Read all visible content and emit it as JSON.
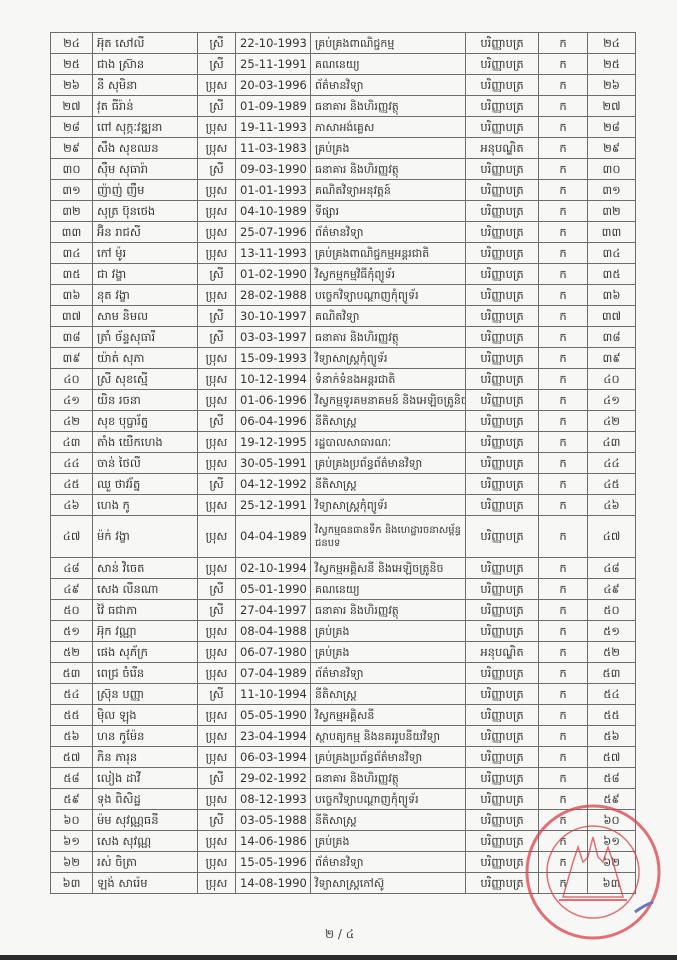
{
  "rows": [
    {
      "no": "២៤",
      "name": "អ៊ុត សៅលី",
      "gender": "ស្រី",
      "dob": "22-10-1993",
      "major": "គ្រប់គ្រងពាណិជ្ជកម្ម",
      "degree": "បរិញ្ញាបត្រ",
      "grade": "ក",
      "no2": "២៤"
    },
    {
      "no": "២៥",
      "name": "ជាង ស្រ៊ាន",
      "gender": "ស្រី",
      "dob": "25-11-1991",
      "major": "គណនេយ្យ",
      "degree": "បរិញ្ញាបត្រ",
      "grade": "ក",
      "no2": "២៥"
    },
    {
      "no": "២៦",
      "name": "នី សុមិនា",
      "gender": "ប្រុស",
      "dob": "20-03-1996",
      "major": "ព័ត៌មានវិទ្យា",
      "degree": "បរិញ្ញាបត្រ",
      "grade": "ក",
      "no2": "២៦"
    },
    {
      "no": "២៧",
      "name": "វុត ធីរ៉ាន់",
      "gender": "ស្រី",
      "dob": "01-09-1989",
      "major": "ធនាគារ និងហិរញ្ញវត្ថុ",
      "degree": "បរិញ្ញាបត្រ",
      "grade": "ក",
      "no2": "២៧"
    },
    {
      "no": "២៨",
      "name": "ពៅ សុក្កៈវឌ្ឍនា",
      "gender": "ប្រុស",
      "dob": "19-11-1993",
      "major": "ភាសាអង់គ្លេស",
      "degree": "បរិញ្ញាបត្រ",
      "grade": "ក",
      "no2": "២៨"
    },
    {
      "no": "២៩",
      "name": "សឹង សុខឈន",
      "gender": "ប្រុស",
      "dob": "11-03-1983",
      "major": "គ្រប់គ្រង",
      "degree": "អនុបណ្ឌិត",
      "grade": "ក",
      "no2": "២៩"
    },
    {
      "no": "៣០",
      "name": "ស៊ឹម សុធារ៉ា",
      "gender": "ស្រី",
      "dob": "09-03-1990",
      "major": "ធនាគារ និងហិរញ្ញវត្ថុ",
      "degree": "បរិញ្ញាបត្រ",
      "grade": "ក",
      "no2": "៣០"
    },
    {
      "no": "៣១",
      "name": "ញ៉ាញ់ ញឹម",
      "gender": "ប្រុស",
      "dob": "01-01-1993",
      "major": "គណិតវិទ្យាអនុវត្តន៍",
      "degree": "បរិញ្ញាបត្រ",
      "grade": "ក",
      "no2": "៣១"
    },
    {
      "no": "៣២",
      "name": "សុត្រ ប៊ុនថេង",
      "gender": "ប្រុស",
      "dob": "04-10-1989",
      "major": "ទីផ្សារ",
      "degree": "បរិញ្ញាបត្រ",
      "grade": "ក",
      "no2": "៣២"
    },
    {
      "no": "៣៣",
      "name": "អ៊ិន រាជសី",
      "gender": "ប្រុស",
      "dob": "25-07-1996",
      "major": "ព័ត៌មានវិទ្យា",
      "degree": "បរិញ្ញាបត្រ",
      "grade": "ក",
      "no2": "៣៣"
    },
    {
      "no": "៣៤",
      "name": "កៅ ម៉ូរ",
      "gender": "ប្រុស",
      "dob": "13-11-1993",
      "major": "គ្រប់គ្រងពាណិជ្ជកម្មអន្តរជាតិ",
      "degree": "បរិញ្ញាបត្រ",
      "grade": "ក",
      "no2": "៣៤"
    },
    {
      "no": "៣៥",
      "name": "ជា វង្ខា",
      "gender": "ស្រី",
      "dob": "01-02-1990",
      "major": "វិស្វកម្មកម្មវិធីកុំព្យូទ័រ",
      "degree": "បរិញ្ញាបត្រ",
      "grade": "ក",
      "no2": "៣៥"
    },
    {
      "no": "៣៦",
      "name": "នុត វង្ខា",
      "gender": "ប្រុស",
      "dob": "28-02-1988",
      "major": "បច្ចេកវិទ្យាបណ្តាញកុំព្យូទ័រ",
      "degree": "បរិញ្ញាបត្រ",
      "grade": "ក",
      "no2": "៣៦"
    },
    {
      "no": "៣៧",
      "name": "សាម និមល",
      "gender": "ស្រី",
      "dob": "30-10-1997",
      "major": "គណិតវិទ្យា",
      "degree": "បរិញ្ញាបត្រ",
      "grade": "ក",
      "no2": "៣៧"
    },
    {
      "no": "៣៨",
      "name": "ត្រាំ ច័ន្ទសុធារី",
      "gender": "ស្រី",
      "dob": "03-03-1997",
      "major": "ធនាគារ និងហិរញ្ញវត្ថុ",
      "degree": "បរិញ្ញាបត្រ",
      "grade": "ក",
      "no2": "៣៨"
    },
    {
      "no": "៣៩",
      "name": "យ៉ាត់ សុភា",
      "gender": "ប្រុស",
      "dob": "15-09-1993",
      "major": "វិទ្យាសាស្ត្រកុំព្យូទ័រ",
      "degree": "បរិញ្ញាបត្រ",
      "grade": "ក",
      "no2": "៣៩"
    },
    {
      "no": "៤០",
      "name": "ស្រី សុខស្មើ",
      "gender": "ប្រុស",
      "dob": "10-12-1994",
      "major": "ទំនាក់ទំនងអន្តរជាតិ",
      "degree": "បរិញ្ញាបត្រ",
      "grade": "ក",
      "no2": "៤០"
    },
    {
      "no": "៤១",
      "name": "យិន រចនា",
      "gender": "ប្រុស",
      "dob": "01-06-1996",
      "major": "វិស្វកម្មទូរគមនាគមន៍ និងអេឡិចត្រូនិច",
      "degree": "បរិញ្ញាបត្រ",
      "grade": "ក",
      "no2": "៤១"
    },
    {
      "no": "៤២",
      "name": "សុខ បុប្ផារ័ត្ន",
      "gender": "ស្រី",
      "dob": "06-04-1996",
      "major": "នីតិសាស្ត្រ",
      "degree": "បរិញ្ញាបត្រ",
      "grade": "ក",
      "no2": "៤២"
    },
    {
      "no": "៤៣",
      "name": "តាំង យើកហេង",
      "gender": "ប្រុស",
      "dob": "19-12-1995",
      "major": "រដ្ឋបាលសាធារណៈ",
      "degree": "បរិញ្ញាបត្រ",
      "grade": "ក",
      "no2": "៤៣"
    },
    {
      "no": "៤៤",
      "name": "ចាន់ ថៃលី",
      "gender": "ប្រុស",
      "dob": "30-05-1991",
      "major": "គ្រប់គ្រងប្រព័ន្ធព័ត៌មានវិទ្យា",
      "degree": "បរិញ្ញាបត្រ",
      "grade": "ក",
      "no2": "៤៤"
    },
    {
      "no": "៤៥",
      "name": "ឈួ ថាវរ័ត្ន",
      "gender": "ស្រី",
      "dob": "04-12-1992",
      "major": "នីតិសាស្ត្រ",
      "degree": "បរិញ្ញាបត្រ",
      "grade": "ក",
      "no2": "៤៥"
    },
    {
      "no": "៤៦",
      "name": "ហេង កូ",
      "gender": "ប្រុស",
      "dob": "25-12-1991",
      "major": "វិទ្យាសាស្ត្រកុំព្យូទ័រ",
      "degree": "បរិញ្ញាបត្រ",
      "grade": "ក",
      "no2": "៤៦"
    },
    {
      "no": "៤៧",
      "name": "ម៉ក់ វង្ខា",
      "gender": "ប្រុស",
      "dob": "04-04-1989",
      "major": "វិស្វកម្មធនធានទឹក និងហេដ្ឋារចនាសម្ព័ន្ធជនបទ",
      "degree": "បរិញ្ញាបត្រ",
      "grade": "ក",
      "no2": "៤៧"
    },
    {
      "no": "៤៨",
      "name": "សាន់ វិចេត",
      "gender": "ប្រុស",
      "dob": "02-10-1994",
      "major": "វិស្វកម្មអគ្គិសនី និងអេឡិចត្រូនិច",
      "degree": "បរិញ្ញាបត្រ",
      "grade": "ក",
      "no2": "៤៨"
    },
    {
      "no": "៤៩",
      "name": "សេង លីនណា",
      "gender": "ស្រី",
      "dob": "05-01-1990",
      "major": "គណនេយ្យ",
      "degree": "បរិញ្ញាបត្រ",
      "grade": "ក",
      "no2": "៤៩"
    },
    {
      "no": "៥០",
      "name": "វ៉ៃ ធជាភា",
      "gender": "ស្រី",
      "dob": "27-04-1997",
      "major": "ធនាគារ និងហិរញ្ញវត្ថុ",
      "degree": "បរិញ្ញាបត្រ",
      "grade": "ក",
      "no2": "៥០"
    },
    {
      "no": "៥១",
      "name": "អ៊ុក វណ្ណា",
      "gender": "ប្រុស",
      "dob": "08-04-1988",
      "major": "គ្រប់គ្រង",
      "degree": "បរិញ្ញាបត្រ",
      "grade": "ក",
      "no2": "៥១"
    },
    {
      "no": "៥២",
      "name": "ផេង សុភ័ក្រ",
      "gender": "ប្រុស",
      "dob": "06-07-1980",
      "major": "គ្រប់គ្រង",
      "degree": "អនុបណ្ឌិត",
      "grade": "ក",
      "no2": "៥២"
    },
    {
      "no": "៥៣",
      "name": "ពេជ្រ ចំរើន",
      "gender": "ប្រុស",
      "dob": "07-04-1989",
      "major": "ព័ត៌មានវិទ្យា",
      "degree": "បរិញ្ញាបត្រ",
      "grade": "ក",
      "no2": "៥៣"
    },
    {
      "no": "៥៤",
      "name": "ស្រ៊ុន បញ្ញា",
      "gender": "ស្រី",
      "dob": "11-10-1994",
      "major": "នីតិសាស្ត្រ",
      "degree": "បរិញ្ញាបត្រ",
      "grade": "ក",
      "no2": "៥៤"
    },
    {
      "no": "៥៥",
      "name": "ម៉ិល ឡុង",
      "gender": "ប្រុស",
      "dob": "05-05-1990",
      "major": "វិស្វកម្មអគ្គិសនី",
      "degree": "បរិញ្ញាបត្រ",
      "grade": "ក",
      "no2": "៥៥"
    },
    {
      "no": "៥៦",
      "name": "ហន កូម៉ែន",
      "gender": "ប្រុស",
      "dob": "23-04-1994",
      "major": "ស្ថាបត្យកម្ម និងនគររូបនីយវិទ្យា",
      "degree": "បរិញ្ញាបត្រ",
      "grade": "ក",
      "no2": "៥៦"
    },
    {
      "no": "៥៧",
      "name": "ភិន ភារុន",
      "gender": "ប្រុស",
      "dob": "06-03-1994",
      "major": "គ្រប់គ្រងប្រព័ន្ធព័ត៌មានវិទ្យា",
      "degree": "បរិញ្ញាបត្រ",
      "grade": "ក",
      "no2": "៥៧"
    },
    {
      "no": "៥៨",
      "name": "លៀង ដាវី",
      "gender": "ស្រី",
      "dob": "29-02-1992",
      "major": "ធនាគារ និងហិរញ្ញវត្ថុ",
      "degree": "បរិញ្ញាបត្រ",
      "grade": "ក",
      "no2": "៥៨"
    },
    {
      "no": "៥៩",
      "name": "ទុង ពិសិដ្ឋ",
      "gender": "ប្រុស",
      "dob": "08-12-1993",
      "major": "បច្ចេកវិទ្យាបណ្តាញកុំព្យូទ័រ",
      "degree": "បរិញ្ញាបត្រ",
      "grade": "ក",
      "no2": "៥៩"
    },
    {
      "no": "៦០",
      "name": "ម៉ម សុវណ្ណធនី",
      "gender": "ស្រី",
      "dob": "03-05-1988",
      "major": "នីតិសាស្ត្រ",
      "degree": "បរិញ្ញាបត្រ",
      "grade": "ក",
      "no2": "៦០"
    },
    {
      "no": "៦១",
      "name": "សេង សុវណ្ណ",
      "gender": "ប្រុស",
      "dob": "14-06-1986",
      "major": "គ្រប់គ្រង",
      "degree": "បរិញ្ញាបត្រ",
      "grade": "ក",
      "no2": "៦១"
    },
    {
      "no": "៦២",
      "name": "រស់ ចិត្រា",
      "gender": "ប្រុស",
      "dob": "15-05-1996",
      "major": "ព័ត៌មានវិទ្យា",
      "degree": "បរិញ្ញាបត្រ",
      "grade": "ក",
      "no2": "៦២"
    },
    {
      "no": "៦៣",
      "name": "ឡង់ សារ៉េម",
      "gender": "ប្រុស",
      "dob": "14-08-1990",
      "major": "វិទ្យាសាស្ត្រកៅស៊ូ",
      "degree": "បរិញ្ញាបត្រ",
      "grade": "ក",
      "no2": "៦៣"
    }
  ],
  "page_number": "២ / ៤",
  "stamp": {
    "color": "#d9434b",
    "icon": "official-seal-temple"
  }
}
